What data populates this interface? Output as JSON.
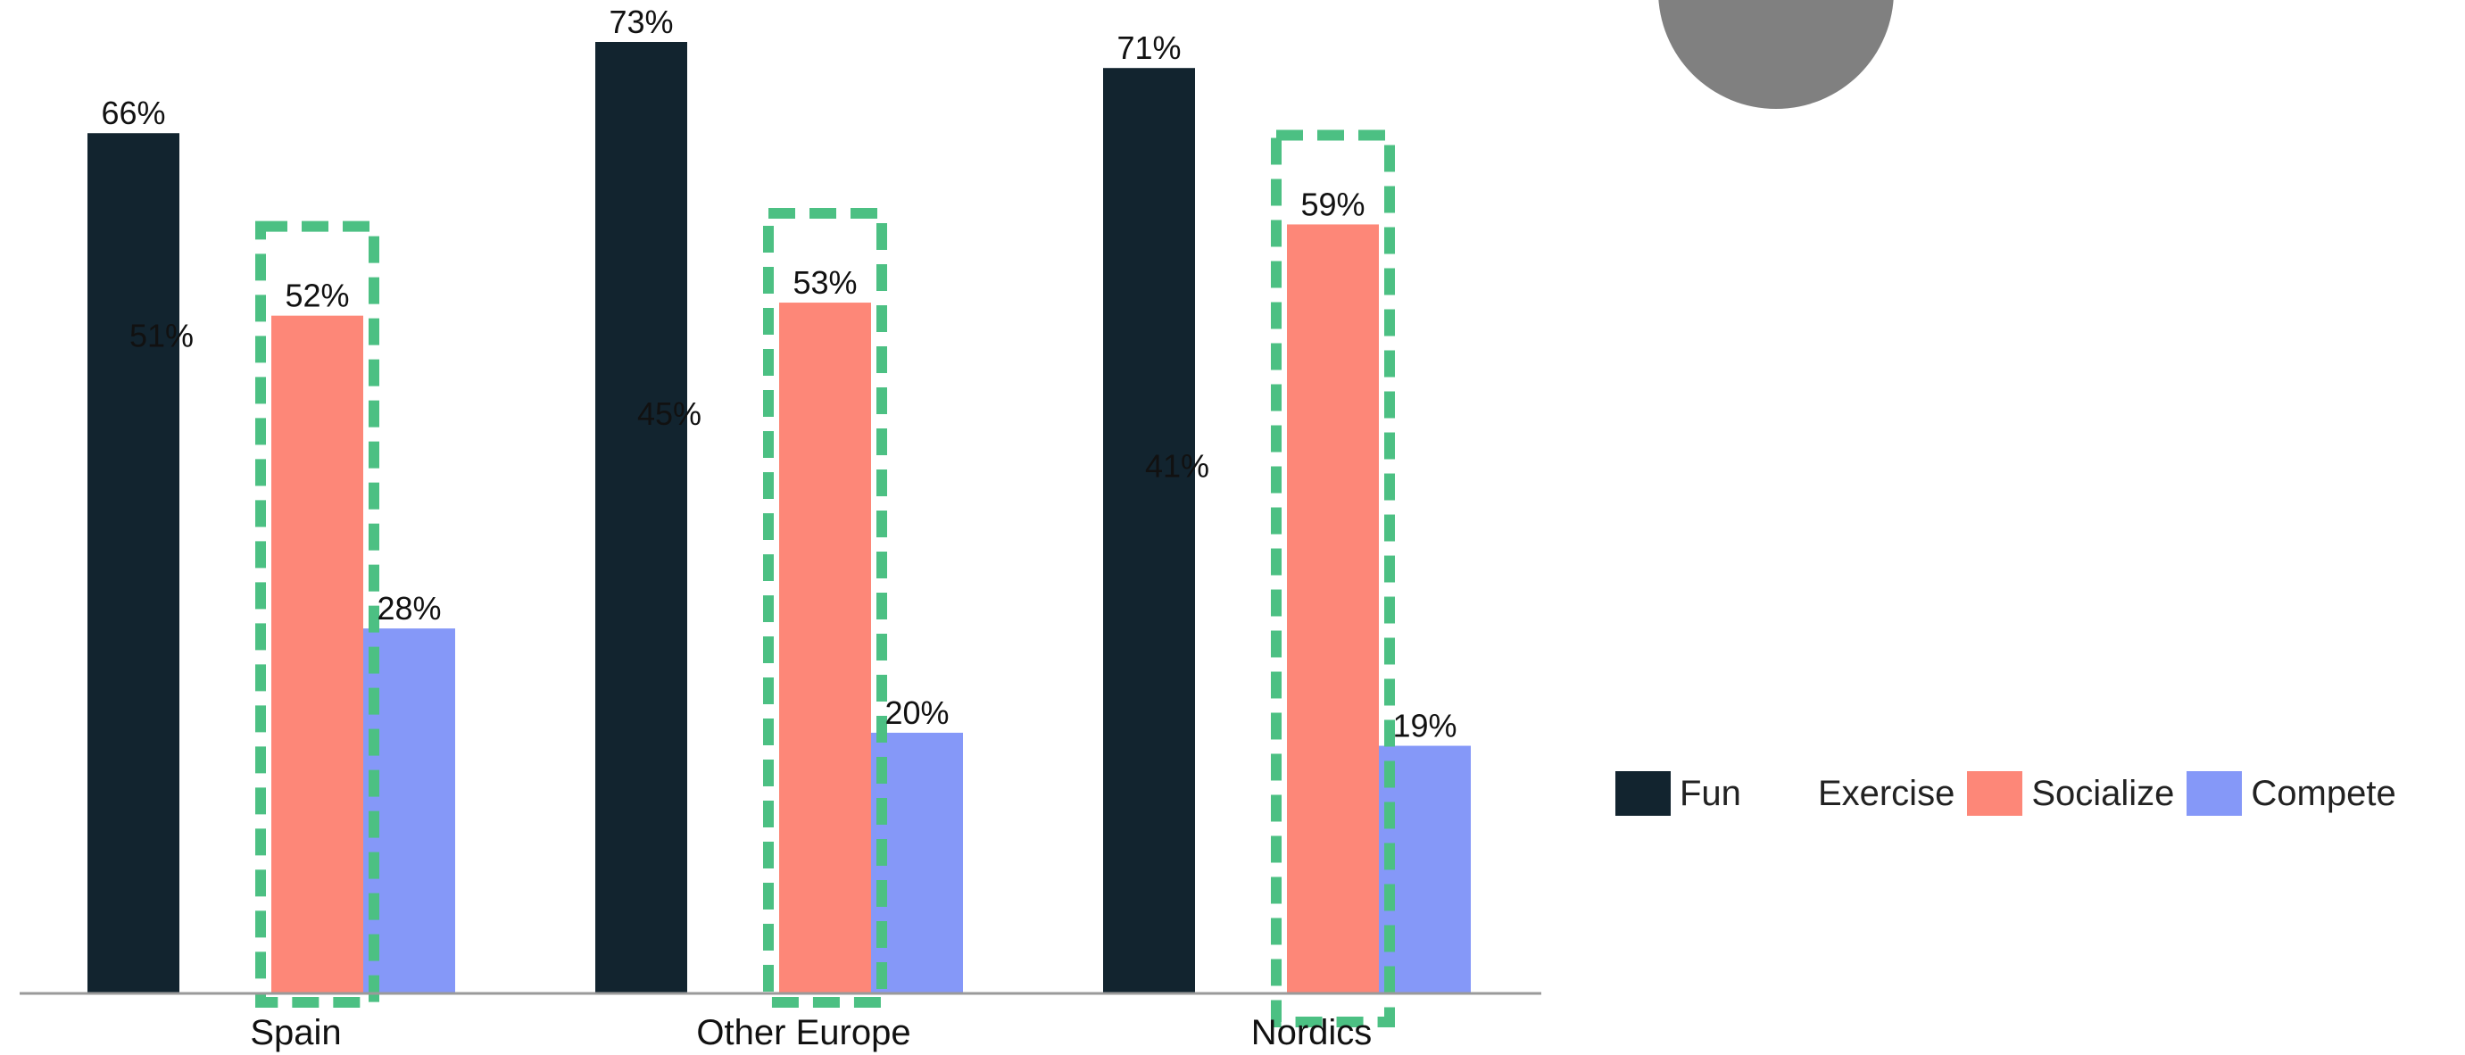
{
  "colors": {
    "background": "#ffffff",
    "axis": "#9a9a9a",
    "highlight_box": "#4cc083",
    "decor_circle": "#808080"
  },
  "chart_data": {
    "type": "bar",
    "categories": [
      "Spain",
      "Other Europe",
      "Nordics"
    ],
    "series": [
      {
        "name": "Fun",
        "color": "#12242f",
        "values": [
          66,
          73,
          71
        ],
        "labels": [
          "66%",
          "73%",
          "71%"
        ],
        "bar_visible": true
      },
      {
        "name": "Exercise",
        "color": "#ffffff",
        "values": [
          51,
          45,
          41
        ],
        "labels": [
          "51%",
          "45%",
          "41%"
        ],
        "bar_visible": false
      },
      {
        "name": "Socialize",
        "color": "#fd8778",
        "values": [
          52,
          53,
          59
        ],
        "labels": [
          "52%",
          "53%",
          "59%"
        ],
        "bar_visible": true
      },
      {
        "name": "Compete",
        "color": "#8598f8",
        "values": [
          28,
          20,
          19
        ],
        "labels": [
          "28%",
          "20%",
          "19%"
        ],
        "bar_visible": true
      }
    ],
    "highlighted_series": "Socialize",
    "ylim": [
      0,
      73
    ],
    "grid": false,
    "legend_position": "right",
    "title": "",
    "xlabel": "",
    "ylabel": ""
  }
}
